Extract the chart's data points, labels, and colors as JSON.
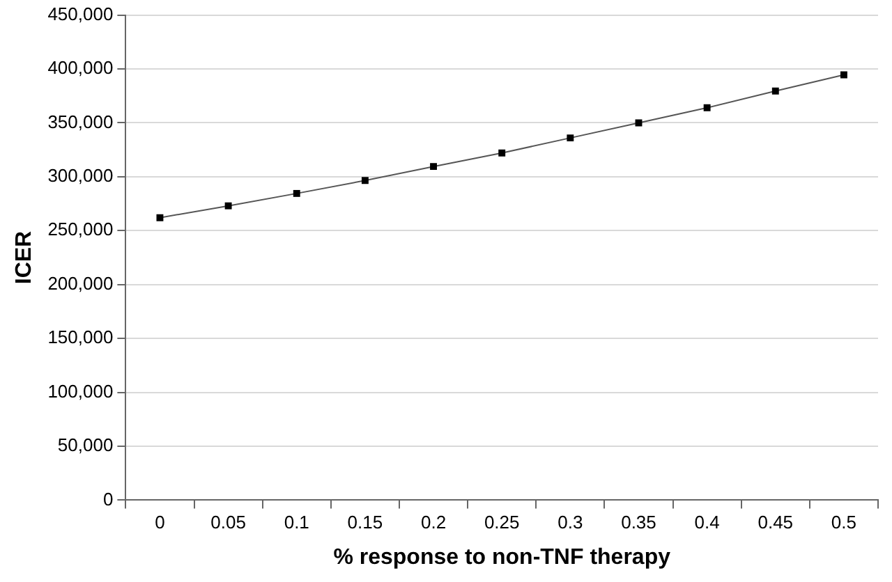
{
  "chart_data": {
    "type": "line",
    "xlabel": "% response to non-TNF therapy",
    "ylabel": "ICER",
    "categories": [
      "0",
      "0.05",
      "0.1",
      "0.15",
      "0.2",
      "0.25",
      "0.3",
      "0.35",
      "0.4",
      "0.45",
      "0.5"
    ],
    "series": [
      {
        "color": "#555555",
        "values": [
          262000,
          273000,
          284500,
          296500,
          309500,
          322000,
          336000,
          350000,
          364000,
          379500,
          394500
        ]
      }
    ],
    "ylim": [
      0,
      450000
    ],
    "yticks": [
      {
        "value": 0,
        "label": "0"
      },
      {
        "value": 50000,
        "label": "50,000"
      },
      {
        "value": 100000,
        "label": "100,000"
      },
      {
        "value": 150000,
        "label": "150,000"
      },
      {
        "value": 200000,
        "label": "200,000"
      },
      {
        "value": 250000,
        "label": "250,000"
      },
      {
        "value": 300000,
        "label": "300,000"
      },
      {
        "value": 350000,
        "label": "350,000"
      },
      {
        "value": 400000,
        "label": "400,000"
      },
      {
        "value": 450000,
        "label": "450,000"
      }
    ],
    "grid": "y",
    "legend": false,
    "marker": "square",
    "line_style": "solid"
  }
}
